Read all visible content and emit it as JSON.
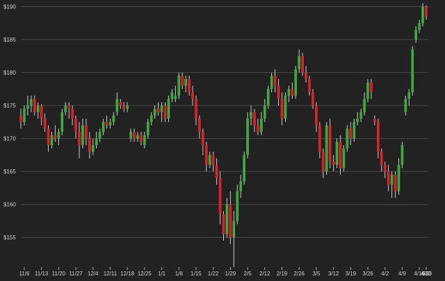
{
  "chart_data": {
    "type": "candlestick",
    "title": "",
    "xlabel": "",
    "ylabel": "",
    "ylim": [
      150.5,
      191
    ],
    "y_ticks": [
      155,
      160,
      165,
      170,
      175,
      180,
      185,
      190
    ],
    "y_tick_prefix": "$",
    "x_tick_labels": [
      "11/6",
      "11/13",
      "11/20",
      "11/27",
      "12/4",
      "12/11",
      "12/18",
      "12/25",
      "1/1",
      "1/8",
      "1/15",
      "1/22",
      "1/29",
      "2/5",
      "2/12",
      "2/19",
      "2/26",
      "3/5",
      "3/12",
      "3/19",
      "3/26",
      "4/2",
      "4/9",
      "4/16",
      "4/23",
      "4/30",
      "5/7"
    ],
    "grid": "horizontal",
    "up_color": "#3fa93f",
    "down_color": "#d9232a",
    "wick_color": "#cccccc",
    "candles": [
      [
        173.5,
        174.5,
        171.5,
        172.5
      ],
      [
        172.5,
        175.0,
        172.0,
        174.5
      ],
      [
        174.5,
        176.5,
        173.5,
        175.0
      ],
      [
        175.0,
        176.5,
        174.0,
        176.0
      ],
      [
        176.0,
        176.5,
        173.5,
        174.0
      ],
      [
        174.0,
        175.5,
        173.0,
        175.0
      ],
      [
        175.0,
        175.2,
        172.0,
        173.0
      ],
      [
        173.0,
        173.8,
        171.0,
        171.5
      ],
      [
        171.5,
        172.0,
        168.0,
        169.0
      ],
      [
        169.0,
        171.0,
        168.5,
        170.5
      ],
      [
        170.5,
        172.0,
        169.5,
        170.0
      ],
      [
        170.0,
        171.5,
        169.0,
        171.0
      ],
      [
        171.0,
        174.5,
        170.5,
        174.0
      ],
      [
        174.0,
        175.5,
        173.5,
        175.0
      ],
      [
        175.0,
        175.5,
        173.0,
        174.5
      ],
      [
        174.5,
        175.0,
        172.0,
        173.0
      ],
      [
        173.0,
        173.5,
        170.0,
        171.0
      ],
      [
        171.0,
        172.5,
        167.0,
        169.0
      ],
      [
        169.0,
        173.0,
        168.5,
        172.0
      ],
      [
        172.0,
        173.0,
        169.0,
        170.0
      ],
      [
        170.0,
        171.0,
        167.0,
        168.0
      ],
      [
        168.0,
        170.0,
        167.5,
        169.0
      ],
      [
        169.0,
        171.0,
        168.5,
        170.0
      ],
      [
        170.0,
        171.5,
        169.5,
        171.0
      ],
      [
        171.0,
        173.0,
        170.5,
        172.5
      ],
      [
        172.5,
        173.5,
        171.5,
        172.0
      ],
      [
        172.0,
        173.0,
        171.5,
        172.5
      ],
      [
        172.5,
        174.0,
        172.0,
        173.5
      ],
      [
        174.0,
        177.0,
        173.5,
        176.0
      ],
      [
        175.5,
        176.0,
        174.5,
        175.0
      ],
      [
        175.0,
        175.5,
        174.0,
        174.5
      ],
      [
        174.5,
        175.5,
        174.0,
        175.0
      ],
      [
        170.0,
        171.5,
        169.5,
        171.0
      ],
      [
        171.0,
        171.5,
        169.5,
        170.0
      ],
      [
        170.0,
        171.0,
        169.5,
        170.5
      ],
      [
        170.5,
        171.0,
        169.0,
        169.5
      ],
      [
        169.0,
        171.0,
        168.5,
        170.5
      ],
      [
        170.5,
        173.0,
        170.0,
        172.5
      ],
      [
        172.5,
        174.0,
        172.0,
        173.5
      ],
      [
        173.5,
        175.0,
        173.0,
        174.5
      ],
      [
        174.5,
        175.5,
        173.5,
        174.0
      ],
      [
        174.0,
        175.5,
        172.5,
        175.0
      ],
      [
        175.0,
        175.5,
        172.5,
        173.0
      ],
      [
        173.0,
        176.5,
        172.5,
        176.0
      ],
      [
        176.0,
        177.5,
        175.5,
        177.0
      ],
      [
        176.0,
        178.0,
        175.5,
        176.5
      ],
      [
        176.5,
        180.0,
        176.0,
        179.5
      ],
      [
        179.5,
        180.0,
        177.5,
        178.0
      ],
      [
        178.0,
        179.5,
        177.0,
        179.0
      ],
      [
        179.0,
        179.5,
        176.5,
        177.0
      ],
      [
        177.0,
        178.0,
        175.0,
        176.0
      ],
      [
        176.0,
        176.5,
        172.0,
        173.0
      ],
      [
        173.0,
        173.5,
        170.0,
        171.0
      ],
      [
        171.0,
        171.5,
        167.5,
        169.0
      ],
      [
        169.0,
        169.5,
        165.0,
        166.0
      ],
      [
        166.0,
        168.0,
        165.5,
        167.5
      ],
      [
        167.5,
        168.0,
        165.0,
        166.0
      ],
      [
        166.0,
        167.0,
        163.0,
        164.0
      ],
      [
        164.0,
        165.0,
        157.0,
        158.5
      ],
      [
        158.5,
        159.0,
        154.5,
        155.5
      ],
      [
        155.5,
        161.0,
        155.0,
        160.0
      ],
      [
        160.0,
        162.0,
        154.0,
        155.0
      ],
      [
        155.0,
        159.0,
        150.5,
        157.5
      ],
      [
        157.5,
        163.0,
        157.0,
        162.0
      ],
      [
        162.0,
        164.5,
        161.0,
        163.5
      ],
      [
        163.5,
        168.0,
        163.0,
        167.5
      ],
      [
        167.5,
        174.0,
        167.0,
        173.0
      ],
      [
        173.0,
        175.0,
        172.0,
        174.0
      ],
      [
        174.0,
        174.5,
        171.0,
        172.0
      ],
      [
        172.0,
        173.0,
        170.5,
        171.0
      ],
      [
        171.0,
        174.0,
        170.5,
        173.0
      ],
      [
        173.0,
        176.0,
        172.5,
        175.0
      ],
      [
        175.0,
        178.0,
        174.5,
        177.5
      ],
      [
        177.5,
        180.0,
        177.0,
        179.5
      ],
      [
        179.5,
        180.5,
        177.0,
        178.0
      ],
      [
        178.0,
        179.0,
        175.0,
        176.0
      ],
      [
        176.0,
        177.0,
        172.0,
        173.0
      ],
      [
        173.0,
        177.0,
        172.5,
        176.5
      ],
      [
        176.5,
        178.0,
        175.5,
        177.5
      ],
      [
        177.5,
        178.5,
        176.0,
        176.5
      ],
      [
        176.5,
        181.0,
        176.0,
        180.5
      ],
      [
        180.5,
        183.5,
        180.0,
        182.5
      ],
      [
        182.5,
        183.0,
        179.5,
        180.0
      ],
      [
        180.0,
        181.0,
        178.5,
        179.0
      ],
      [
        179.0,
        179.5,
        176.5,
        177.0
      ],
      [
        177.0,
        177.5,
        174.5,
        175.0
      ],
      [
        175.0,
        175.5,
        171.0,
        172.0
      ],
      [
        172.0,
        172.5,
        167.0,
        168.0
      ],
      [
        168.0,
        168.5,
        164.0,
        165.0
      ],
      [
        165.0,
        172.5,
        164.5,
        172.0
      ],
      [
        172.0,
        173.0,
        165.5,
        166.5
      ],
      [
        166.5,
        167.5,
        165.0,
        166.0
      ],
      [
        166.0,
        170.0,
        165.5,
        169.5
      ],
      [
        169.5,
        170.5,
        164.5,
        165.5
      ],
      [
        165.5,
        169.0,
        165.0,
        168.5
      ],
      [
        168.5,
        172.0,
        168.0,
        171.5
      ],
      [
        171.5,
        172.5,
        169.0,
        170.0
      ],
      [
        170.0,
        173.0,
        169.5,
        172.5
      ],
      [
        172.5,
        174.0,
        172.0,
        173.0
      ],
      [
        173.0,
        174.5,
        172.5,
        174.0
      ],
      [
        174.0,
        177.0,
        173.5,
        176.0
      ],
      [
        176.0,
        179.0,
        175.5,
        178.5
      ],
      [
        178.5,
        179.0,
        176.0,
        177.0
      ],
      [
        173.0,
        173.5,
        172.0,
        172.5
      ],
      [
        172.5,
        173.0,
        167.0,
        168.0
      ],
      [
        168.0,
        168.5,
        165.0,
        166.0
      ],
      [
        166.0,
        166.5,
        164.0,
        165.0
      ],
      [
        165.0,
        166.0,
        162.0,
        163.0
      ],
      [
        163.0,
        165.0,
        161.0,
        164.5
      ],
      [
        164.5,
        165.0,
        161.0,
        162.0
      ],
      [
        162.0,
        167.0,
        161.5,
        166.0
      ],
      [
        166.0,
        169.5,
        165.5,
        169.0
      ],
      [
        174.0,
        176.5,
        173.5,
        176.0
      ],
      [
        176.0,
        177.5,
        175.0,
        177.0
      ],
      [
        177.0,
        184.0,
        176.5,
        183.5
      ],
      [
        185.0,
        187.0,
        184.5,
        186.5
      ],
      [
        186.5,
        188.0,
        186.0,
        187.5
      ],
      [
        187.5,
        190.5,
        187.0,
        190.0
      ],
      [
        190.0,
        190.2,
        188.0,
        188.5
      ]
    ]
  }
}
